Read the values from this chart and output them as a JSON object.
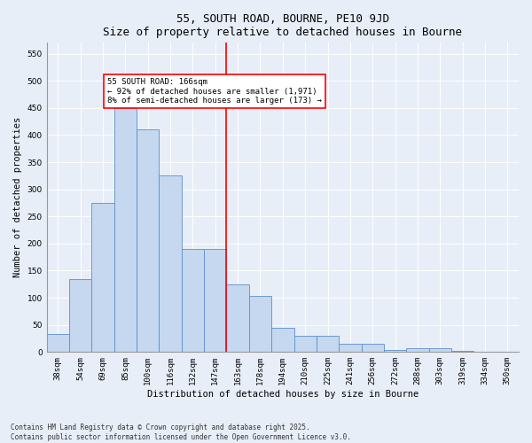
{
  "title": "55, SOUTH ROAD, BOURNE, PE10 9JD",
  "subtitle": "Size of property relative to detached houses in Bourne",
  "xlabel": "Distribution of detached houses by size in Bourne",
  "ylabel": "Number of detached properties",
  "categories": [
    "38sqm",
    "54sqm",
    "69sqm",
    "85sqm",
    "100sqm",
    "116sqm",
    "132sqm",
    "147sqm",
    "163sqm",
    "178sqm",
    "194sqm",
    "210sqm",
    "225sqm",
    "241sqm",
    "256sqm",
    "272sqm",
    "288sqm",
    "303sqm",
    "319sqm",
    "334sqm",
    "350sqm"
  ],
  "values": [
    33,
    135,
    275,
    450,
    410,
    325,
    190,
    190,
    125,
    103,
    45,
    30,
    30,
    15,
    15,
    4,
    7,
    7,
    2,
    1,
    1
  ],
  "bar_color": "#c5d8ef",
  "bar_edge_color": "#5b8fc9",
  "vline_index": 8,
  "vline_color": "red",
  "annotation_text": "55 SOUTH ROAD: 166sqm\n← 92% of detached houses are smaller (1,971)\n8% of semi-detached houses are larger (173) →",
  "annotation_box_color": "red",
  "ylim": [
    0,
    570
  ],
  "yticks": [
    0,
    50,
    100,
    150,
    200,
    250,
    300,
    350,
    400,
    450,
    500,
    550
  ],
  "background_color": "#e8eef7",
  "grid_color": "#ffffff",
  "footer": "Contains HM Land Registry data © Crown copyright and database right 2025.\nContains public sector information licensed under the Open Government Licence v3.0.",
  "title_fontsize": 9,
  "axis_label_fontsize": 7.5,
  "tick_fontsize": 6.5,
  "footer_fontsize": 5.5,
  "annotation_fontsize": 6.5
}
